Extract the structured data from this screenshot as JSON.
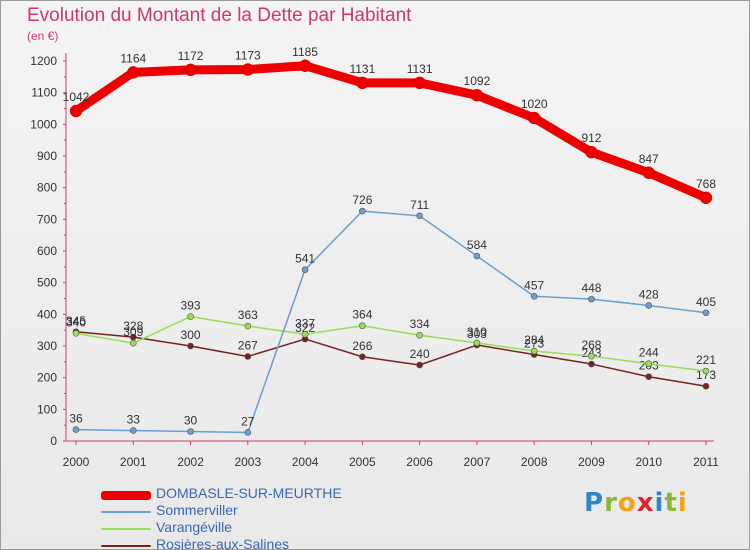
{
  "header": {
    "title": "Evolution du Montant de la Dette par Habitant",
    "unit": "(en €)"
  },
  "logo": {
    "letters": [
      "P",
      "r",
      "o",
      "x",
      "i",
      "t",
      "i"
    ]
  },
  "chart_data": {
    "type": "line",
    "title": "Evolution du Montant de la Dette par Habitant",
    "subtitle": "(en €)",
    "xlabel": "",
    "ylabel": "",
    "x": [
      "2000",
      "2001",
      "2002",
      "2003",
      "2004",
      "2005",
      "2006",
      "2007",
      "2008",
      "2009",
      "2010",
      "2011"
    ],
    "ylim": [
      0,
      1200
    ],
    "yticks": [
      0,
      100,
      200,
      300,
      400,
      500,
      600,
      700,
      800,
      900,
      1000,
      1100,
      1200
    ],
    "grid": false,
    "legend_position": "bottom-left",
    "series": [
      {
        "name": "DOMBASLE-SUR-MEURTHE",
        "color": "#ee0000",
        "values": [
          1042,
          1164,
          1172,
          1173,
          1185,
          1131,
          1131,
          1092,
          1020,
          912,
          847,
          768
        ]
      },
      {
        "name": "Sommerviller",
        "color": "#6b9fd3",
        "values": [
          36,
          33,
          30,
          27,
          541,
          726,
          711,
          584,
          457,
          448,
          428,
          405
        ]
      },
      {
        "name": "Varangéville",
        "color": "#99dd55",
        "values": [
          340,
          309,
          393,
          363,
          337,
          364,
          334,
          310,
          284,
          268,
          244,
          221
        ]
      },
      {
        "name": "Rosières-aux-Salines",
        "color": "#772222",
        "values": [
          345,
          328,
          300,
          267,
          322,
          266,
          240,
          303,
          273,
          243,
          203,
          173
        ]
      }
    ]
  }
}
